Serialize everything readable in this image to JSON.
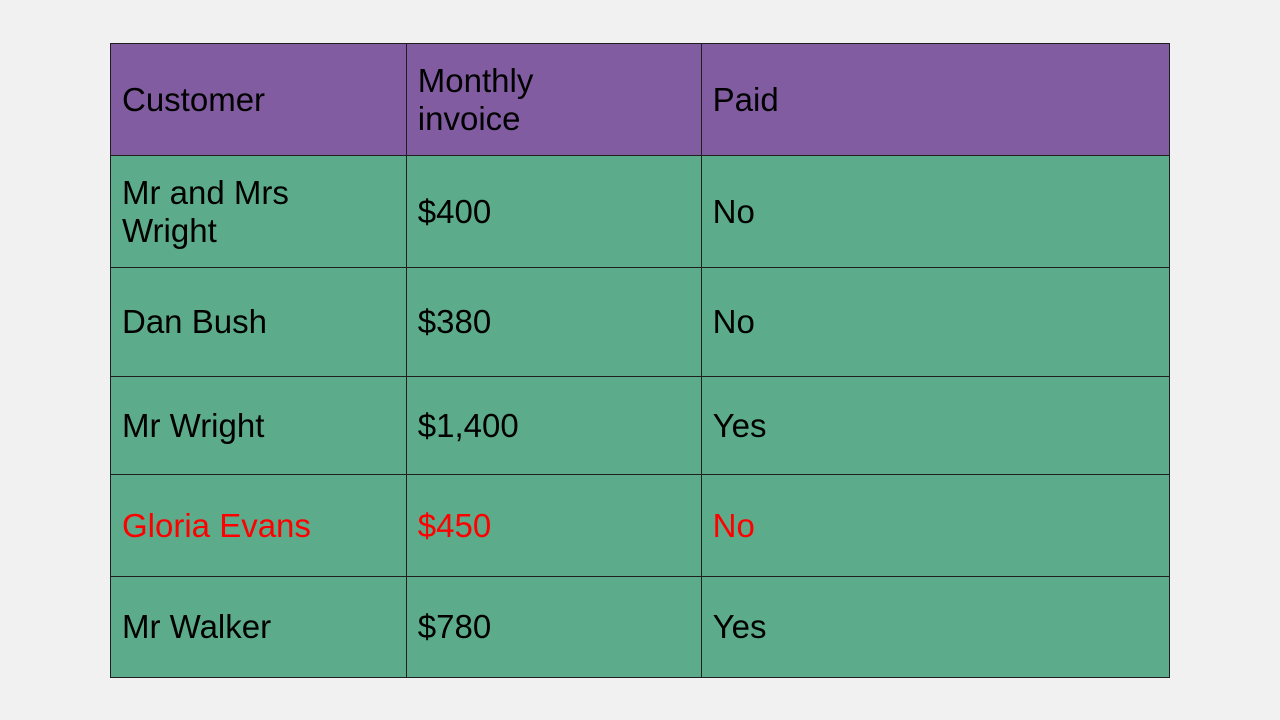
{
  "table": {
    "headers": [
      "Customer",
      "Monthly invoice",
      "Paid"
    ],
    "rows": [
      {
        "customer": "Mr and Mrs Wright",
        "invoice": "$400",
        "paid": "No",
        "highlight": false
      },
      {
        "customer": "Dan Bush",
        "invoice": "$380",
        "paid": "No",
        "highlight": false
      },
      {
        "customer": "Mr Wright",
        "invoice": "$1,400",
        "paid": "Yes",
        "highlight": false
      },
      {
        "customer": "Gloria Evans",
        "invoice": "$450",
        "paid": "No",
        "highlight": true
      },
      {
        "customer": "Mr Walker",
        "invoice": "$780",
        "paid": "Yes",
        "highlight": false
      }
    ]
  },
  "colors": {
    "header_bg": "#825ca1",
    "row_bg": "#5cac8b",
    "highlight_text": "#ff0000"
  }
}
